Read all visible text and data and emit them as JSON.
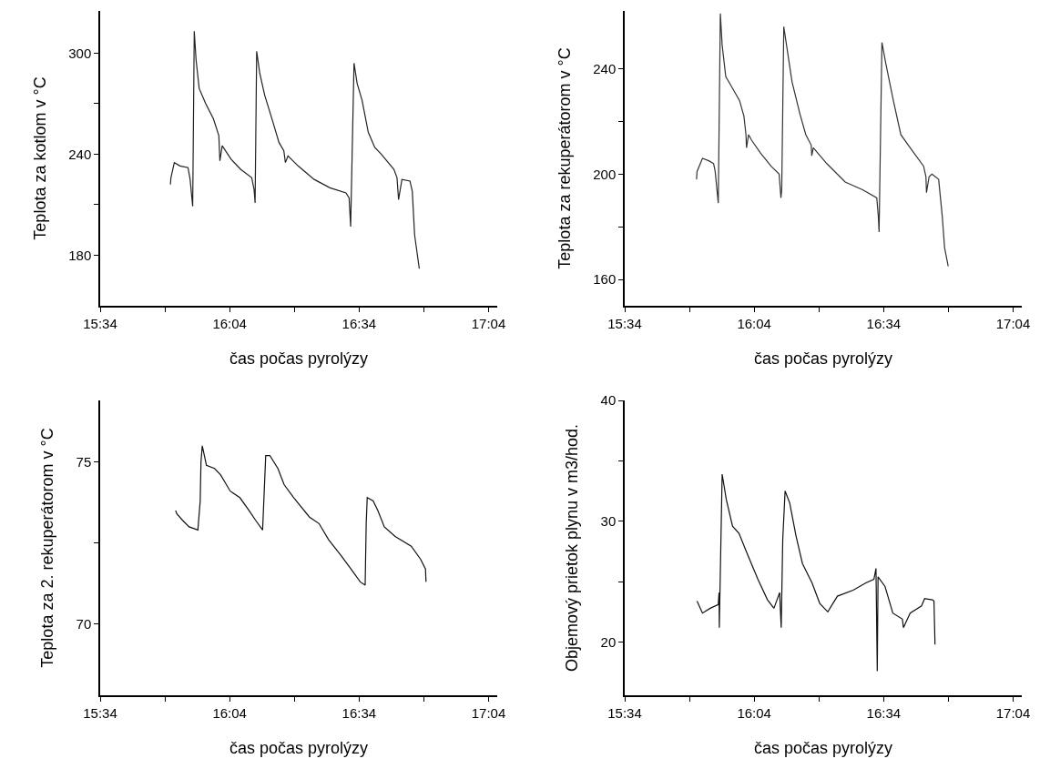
{
  "chart_data": [
    {
      "type": "line",
      "xlabel": "čas počas pyrolýzy",
      "ylabel": "Teplota za kotlom v °C",
      "grid": false,
      "legend": false,
      "marker": "none",
      "line_style": "solid",
      "xlim": [
        15.5667,
        17.1
      ],
      "xticks": [
        {
          "value": 15.5667,
          "label": "15:34"
        },
        {
          "value": 15.8167,
          "label": null
        },
        {
          "value": 16.0667,
          "label": "16:04"
        },
        {
          "value": 16.3167,
          "label": null
        },
        {
          "value": 16.5667,
          "label": "16:34"
        },
        {
          "value": 16.8167,
          "label": null
        },
        {
          "value": 17.0667,
          "label": "17:04"
        }
      ],
      "ylim": [
        150,
        325
      ],
      "yticks": [
        180,
        {
          "value": 210,
          "label": null
        },
        240,
        {
          "value": 270,
          "label": null
        },
        300
      ],
      "series": [
        {
          "color": "#222222",
          "x": [
            15.838,
            15.84,
            15.853,
            15.875,
            15.906,
            15.914,
            15.924,
            15.93,
            15.937,
            15.949,
            15.974,
            16.004,
            16.025,
            16.029,
            16.038,
            16.072,
            16.109,
            16.152,
            16.161,
            16.165,
            16.171,
            16.183,
            16.202,
            16.232,
            16.257,
            16.276,
            16.282,
            16.292,
            16.331,
            16.393,
            16.454,
            16.516,
            16.528,
            16.534,
            16.547,
            16.559,
            16.578,
            16.602,
            16.627,
            16.652,
            16.701,
            16.713,
            16.719,
            16.732,
            16.763,
            16.772,
            16.781,
            16.799
          ],
          "values": [
            222,
            226,
            235,
            233,
            232,
            225,
            209,
            313,
            296,
            279,
            270,
            261,
            251,
            236,
            245,
            237,
            231,
            226,
            219,
            211,
            301,
            288,
            275,
            260,
            247,
            242,
            235,
            239,
            233,
            225,
            220,
            217,
            214,
            197,
            294,
            282,
            272,
            253,
            244,
            240,
            231,
            226,
            213,
            225,
            224,
            218,
            192,
            172
          ]
        }
      ]
    },
    {
      "type": "line",
      "xlabel": "čas počas pyrolýzy",
      "ylabel": "Teplota za rekuperátorom v °C",
      "grid": false,
      "legend": false,
      "marker": "none",
      "line_style": "solid",
      "xlim": [
        15.5667,
        17.1
      ],
      "xticks": [
        {
          "value": 15.5667,
          "label": "15:34"
        },
        {
          "value": 15.8167,
          "label": null
        },
        {
          "value": 16.0667,
          "label": "16:04"
        },
        {
          "value": 16.3167,
          "label": null
        },
        {
          "value": 16.5667,
          "label": "16:34"
        },
        {
          "value": 16.8167,
          "label": null
        },
        {
          "value": 17.0667,
          "label": "17:04"
        }
      ],
      "ylim": [
        150,
        262
      ],
      "yticks": [
        160,
        {
          "value": 180,
          "label": null
        },
        200,
        {
          "value": 220,
          "label": null
        },
        240
      ],
      "series": [
        {
          "color": "#333333",
          "x": [
            15.844,
            15.846,
            15.867,
            15.893,
            15.91,
            15.916,
            15.928,
            15.936,
            15.943,
            15.957,
            15.975,
            16.01,
            16.027,
            16.035,
            16.037,
            16.045,
            16.056,
            16.091,
            16.132,
            16.163,
            16.17,
            16.173,
            16.181,
            16.19,
            16.213,
            16.243,
            16.266,
            16.287,
            16.289,
            16.295,
            16.347,
            16.418,
            16.487,
            16.54,
            16.546,
            16.549,
            16.56,
            16.575,
            16.604,
            16.633,
            16.662,
            16.721,
            16.73,
            16.732,
            16.742,
            16.753,
            16.779,
            16.793,
            16.802,
            16.816
          ],
          "values": [
            198,
            201,
            206,
            205,
            204,
            201,
            189,
            261,
            249,
            237,
            234,
            228,
            222,
            215,
            210,
            215,
            213,
            208,
            203,
            200,
            191,
            194,
            256,
            250,
            235,
            223,
            215,
            211,
            207,
            210,
            204,
            197,
            194,
            191,
            184,
            178,
            250,
            242,
            228,
            215,
            211,
            203,
            199,
            193,
            199,
            200,
            198,
            184,
            172,
            165
          ]
        }
      ]
    },
    {
      "type": "line",
      "xlabel": "čas počas pyrolýzy",
      "ylabel": "Teplota za 2. rekuperátorom v °C",
      "grid": false,
      "legend": false,
      "marker": "none",
      "line_style": "solid",
      "xlim": [
        15.5667,
        17.1
      ],
      "xticks": [
        {
          "value": 15.5667,
          "label": "15:34"
        },
        {
          "value": 15.8167,
          "label": null
        },
        {
          "value": 16.0667,
          "label": "16:04"
        },
        {
          "value": 16.3167,
          "label": null
        },
        {
          "value": 16.5667,
          "label": "16:34"
        },
        {
          "value": 16.8167,
          "label": null
        },
        {
          "value": 17.0667,
          "label": "17:04"
        }
      ],
      "ylim": [
        67.8,
        76.9
      ],
      "yticks": [
        70,
        {
          "value": 72.5,
          "label": null
        },
        75
      ],
      "series": [
        {
          "color": "#111111",
          "x": [
            15.858,
            15.863,
            15.885,
            15.91,
            15.944,
            15.953,
            15.956,
            15.961,
            15.977,
            16.008,
            16.032,
            16.069,
            16.106,
            16.142,
            16.167,
            16.194,
            16.206,
            16.222,
            16.253,
            16.277,
            16.314,
            16.375,
            16.412,
            16.449,
            16.498,
            16.535,
            16.571,
            16.59,
            16.594,
            16.598,
            16.621,
            16.639,
            16.664,
            16.706,
            16.768,
            16.804,
            16.823,
            16.825
          ],
          "values": [
            73.5,
            73.4,
            73.2,
            73.0,
            72.9,
            73.8,
            75.0,
            75.5,
            74.9,
            74.8,
            74.6,
            74.1,
            73.9,
            73.5,
            73.2,
            72.9,
            75.2,
            75.2,
            74.8,
            74.3,
            73.9,
            73.3,
            73.1,
            72.6,
            72.1,
            71.7,
            71.3,
            71.2,
            73.1,
            73.9,
            73.8,
            73.5,
            73.0,
            72.7,
            72.4,
            72.0,
            71.7,
            71.3
          ]
        }
      ]
    },
    {
      "type": "line",
      "xlabel": "čas počas pyrolýzy",
      "ylabel": "Objemový prietok plynu v m3/hod.",
      "grid": false,
      "legend": false,
      "marker": "none",
      "line_style": "solid",
      "xlim": [
        15.5667,
        17.1
      ],
      "xticks": [
        {
          "value": 15.5667,
          "label": "15:34"
        },
        {
          "value": 15.8167,
          "label": null
        },
        {
          "value": 16.0667,
          "label": "16:04"
        },
        {
          "value": 16.3167,
          "label": null
        },
        {
          "value": 16.5667,
          "label": "16:34"
        },
        {
          "value": 16.8167,
          "label": null
        },
        {
          "value": 17.0667,
          "label": "17:04"
        }
      ],
      "ylim": [
        15.6,
        40
      ],
      "yticks": [
        20,
        {
          "value": 25,
          "label": null
        },
        30,
        {
          "value": 35,
          "label": null
        },
        40
      ],
      "series": [
        {
          "color": "#111111",
          "x": [
            15.846,
            15.867,
            15.897,
            15.928,
            15.931,
            15.932,
            15.943,
            15.959,
            15.983,
            16.008,
            16.038,
            16.081,
            16.118,
            16.143,
            16.165,
            16.171,
            16.177,
            16.186,
            16.204,
            16.228,
            16.253,
            16.29,
            16.32,
            16.351,
            16.388,
            16.449,
            16.498,
            16.529,
            16.537,
            16.542,
            16.545,
            16.572,
            16.602,
            16.639,
            16.643,
            16.669,
            16.713,
            16.725,
            16.755,
            16.761,
            16.765
          ],
          "values": [
            23.4,
            22.4,
            22.8,
            23.1,
            24.1,
            21.2,
            33.9,
            31.8,
            29.6,
            29.0,
            27.4,
            25.2,
            23.5,
            22.8,
            24.1,
            21.2,
            28.5,
            32.5,
            31.5,
            28.8,
            26.5,
            24.9,
            23.2,
            22.5,
            23.8,
            24.3,
            24.9,
            25.2,
            26.1,
            17.6,
            25.4,
            24.6,
            22.4,
            21.9,
            21.2,
            22.4,
            23.0,
            23.6,
            23.5,
            23.4,
            19.8
          ]
        }
      ]
    }
  ]
}
